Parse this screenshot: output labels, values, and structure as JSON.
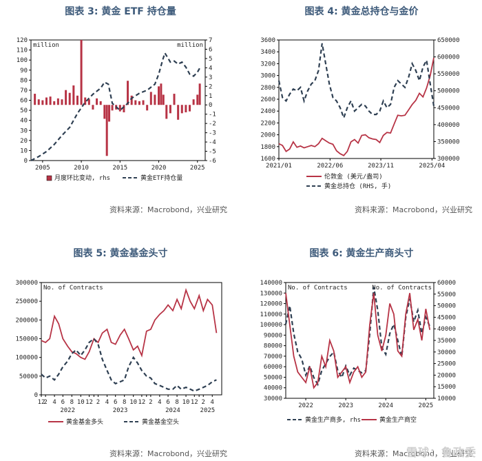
{
  "titles": {
    "c3": "图表 3:  黄金 ETF 持仓量",
    "c4": "图表 4:  黄金总持仓与金价",
    "c5": "图表 5:  黄金基金头寸",
    "c6": "图表 6:  黄金生产商头寸"
  },
  "source_text": "资料来源：Macrobond，兴业研究",
  "watermark": "雪球：鲁政委",
  "colors": {
    "red": "#b73345",
    "dark": "#2e3f52",
    "title": "#3d5a7a"
  },
  "chart_data": [
    {
      "id": "c3",
      "type": "bar",
      "left_unit": "million",
      "right_unit": "million",
      "y_left": {
        "min": 0,
        "max": 120,
        "ticks": [
          0,
          10,
          20,
          30,
          40,
          50,
          60,
          70,
          80,
          90,
          100,
          110,
          120
        ]
      },
      "y_right": {
        "min": -6,
        "max": 7,
        "ticks": [
          -6,
          -5,
          -4,
          -3,
          -2,
          -1,
          0,
          1,
          2,
          3,
          4,
          5,
          6,
          7
        ]
      },
      "x": {
        "min": 2003.5,
        "max": 2026,
        "ticks": [
          2005,
          2010,
          2015,
          2020,
          2025
        ]
      },
      "series": [
        {
          "name": "月度环比变动, rhs",
          "kind": "bar",
          "axis": "right",
          "x": [
            2004.0,
            2004.5,
            2005.0,
            2005.5,
            2006.0,
            2006.5,
            2007.0,
            2007.5,
            2008.0,
            2008.5,
            2009.0,
            2009.5,
            2010.0,
            2010.5,
            2011.0,
            2011.5,
            2012.0,
            2012.5,
            2013.0,
            2013.3,
            2013.6,
            2014.0,
            2014.5,
            2015.0,
            2015.5,
            2016.0,
            2016.5,
            2017.0,
            2017.5,
            2018.0,
            2018.5,
            2019.0,
            2019.5,
            2020.0,
            2020.3,
            2020.6,
            2021.0,
            2021.5,
            2022.0,
            2022.5,
            2023.0,
            2023.5,
            2024.0,
            2024.5,
            2025.0,
            2025.3
          ],
          "values": [
            1.2,
            0.6,
            0.5,
            0.8,
            0.9,
            0.4,
            0.7,
            0.6,
            1.6,
            1.3,
            2.1,
            1.0,
            7.0,
            0.8,
            0.6,
            -0.5,
            0.7,
            0.4,
            -1.5,
            -5.5,
            -1.8,
            -0.6,
            -0.5,
            -0.7,
            -0.8,
            2.6,
            1.0,
            0.5,
            0.4,
            0.5,
            -0.6,
            1.4,
            1.1,
            2.0,
            2.3,
            1.1,
            -1.5,
            -0.9,
            1.2,
            -1.6,
            -0.9,
            -0.8,
            -0.7,
            0.6,
            1.1,
            2.3
          ]
        },
        {
          "name": "黄金ETF持仓量",
          "kind": "line",
          "axis": "left",
          "x": [
            2003.5,
            2004.5,
            2005.5,
            2006.5,
            2007.5,
            2008.5,
            2009.5,
            2010.5,
            2011.5,
            2012.5,
            2013.0,
            2013.5,
            2014.0,
            2015.0,
            2016.0,
            2016.5,
            2017.5,
            2018.5,
            2019.5,
            2020.0,
            2020.5,
            2020.8,
            2021.5,
            2022.0,
            2022.5,
            2023.0,
            2023.5,
            2024.0,
            2024.5,
            2025.0,
            2025.3
          ],
          "values": [
            0,
            4,
            9,
            16,
            25,
            33,
            47,
            58,
            66,
            72,
            78,
            76,
            57,
            50,
            57,
            62,
            67,
            70,
            76,
            86,
            100,
            107,
            98,
            99,
            96,
            98,
            93,
            86,
            84,
            88,
            92
          ]
        }
      ]
    },
    {
      "id": "c4",
      "type": "line",
      "y_left": {
        "min": 1600,
        "max": 3600,
        "ticks": [
          1600,
          1800,
          2000,
          2200,
          2400,
          2600,
          2800,
          3000,
          3200,
          3400,
          3600
        ]
      },
      "y_right": {
        "min": 300000,
        "max": 650000,
        "ticks": [
          300000,
          350000,
          400000,
          450000,
          500000,
          550000,
          600000,
          650000
        ]
      },
      "x": {
        "min": 2021.0,
        "max": 2025.3,
        "ticks": [
          2021.0,
          2022.42,
          2023.83,
          2025.25
        ],
        "tick_labels": [
          "2021/01",
          "2022/06",
          "2023/11",
          "2025/04"
        ]
      },
      "series": [
        {
          "name": "伦敦金 (美元/盎司)",
          "axis": "left",
          "x": [
            2021.0,
            2021.1,
            2021.2,
            2021.3,
            2021.4,
            2021.5,
            2021.6,
            2021.7,
            2021.8,
            2021.9,
            2022.0,
            2022.1,
            2022.2,
            2022.3,
            2022.4,
            2022.5,
            2022.6,
            2022.7,
            2022.8,
            2022.9,
            2023.0,
            2023.1,
            2023.2,
            2023.3,
            2023.4,
            2023.5,
            2023.6,
            2023.7,
            2023.8,
            2023.9,
            2024.0,
            2024.1,
            2024.2,
            2024.3,
            2024.4,
            2024.5,
            2024.6,
            2024.7,
            2024.8,
            2024.9,
            2025.0,
            2025.1,
            2025.2,
            2025.3
          ],
          "values": [
            1850,
            1820,
            1720,
            1760,
            1880,
            1790,
            1810,
            1780,
            1800,
            1820,
            1800,
            1850,
            1940,
            1900,
            1860,
            1840,
            1730,
            1680,
            1650,
            1720,
            1880,
            1920,
            1860,
            1990,
            2000,
            1950,
            1930,
            1920,
            1870,
            1990,
            2040,
            2030,
            2180,
            2330,
            2320,
            2330,
            2420,
            2510,
            2580,
            2700,
            2640,
            2790,
            3000,
            3300
          ]
        },
        {
          "name": "黄金总持仓 (RHS, 手)",
          "axis": "right",
          "x": [
            2021.0,
            2021.1,
            2021.2,
            2021.3,
            2021.4,
            2021.5,
            2021.6,
            2021.7,
            2021.8,
            2021.9,
            2022.0,
            2022.1,
            2022.2,
            2022.3,
            2022.4,
            2022.5,
            2022.6,
            2022.7,
            2022.8,
            2022.9,
            2023.0,
            2023.1,
            2023.2,
            2023.3,
            2023.4,
            2023.5,
            2023.6,
            2023.7,
            2023.8,
            2023.9,
            2024.0,
            2024.1,
            2024.2,
            2024.3,
            2024.4,
            2024.5,
            2024.6,
            2024.7,
            2024.8,
            2024.9,
            2025.0,
            2025.1,
            2025.2,
            2025.3
          ],
          "values": [
            530000,
            480000,
            470000,
            490000,
            505000,
            500000,
            510000,
            470000,
            500000,
            520000,
            530000,
            560000,
            640000,
            580000,
            520000,
            480000,
            470000,
            450000,
            420000,
            450000,
            470000,
            440000,
            450000,
            460000,
            455000,
            440000,
            430000,
            430000,
            440000,
            470000,
            450000,
            460000,
            510000,
            530000,
            520000,
            510000,
            540000,
            580000,
            560000,
            530000,
            570000,
            590000,
            520000,
            455000
          ]
        }
      ]
    },
    {
      "id": "c5",
      "type": "line",
      "left_unit": "No. of Contracts",
      "y_left": {
        "min": 0,
        "max": 300000,
        "ticks": [
          0,
          50000,
          100000,
          150000,
          200000,
          250000,
          300000
        ]
      },
      "x": {
        "min": 2021.92,
        "max": 2025.35,
        "ticks": [
          2021.92,
          2022.0,
          2022.17,
          2022.33,
          2022.5,
          2022.67,
          2022.83,
          2022.92,
          2023.0,
          2023.17,
          2023.33,
          2023.5,
          2023.67,
          2023.83,
          2023.92,
          2024.0,
          2024.17,
          2024.33,
          2024.5,
          2024.67,
          2024.83,
          2024.92,
          2025.0,
          2025.17
        ],
        "tick_labels": [
          "12",
          "2",
          "4",
          "6",
          "8",
          "10",
          "12",
          "",
          "2",
          "4",
          "6",
          "8",
          "10",
          "12",
          "",
          "2",
          "4",
          "6",
          "8",
          "10",
          "12",
          "",
          "2",
          "4"
        ],
        "year_labels": [
          "2022",
          "2023",
          "2024",
          "2025"
        ],
        "year_positions": [
          2022.42,
          2023.42,
          2024.42,
          2025.08
        ]
      },
      "series": [
        {
          "name": "黄金基金多头",
          "axis": "left",
          "x": [
            2021.92,
            2022.0,
            2022.08,
            2022.17,
            2022.25,
            2022.33,
            2022.42,
            2022.5,
            2022.58,
            2022.67,
            2022.75,
            2022.83,
            2022.92,
            2023.0,
            2023.08,
            2023.17,
            2023.25,
            2023.33,
            2023.42,
            2023.5,
            2023.58,
            2023.67,
            2023.75,
            2023.83,
            2023.92,
            2024.0,
            2024.08,
            2024.17,
            2024.25,
            2024.33,
            2024.42,
            2024.5,
            2024.58,
            2024.67,
            2024.75,
            2024.83,
            2024.92,
            2025.0,
            2025.08,
            2025.17,
            2025.25
          ],
          "values": [
            145000,
            140000,
            150000,
            210000,
            190000,
            150000,
            130000,
            115000,
            110000,
            100000,
            95000,
            115000,
            150000,
            140000,
            165000,
            175000,
            140000,
            135000,
            160000,
            175000,
            150000,
            120000,
            130000,
            105000,
            170000,
            175000,
            200000,
            215000,
            225000,
            240000,
            225000,
            255000,
            230000,
            280000,
            250000,
            230000,
            265000,
            225000,
            255000,
            240000,
            165000
          ]
        },
        {
          "name": "黄金基金空头",
          "axis": "left",
          "x": [
            2021.92,
            2022.0,
            2022.08,
            2022.17,
            2022.25,
            2022.33,
            2022.42,
            2022.5,
            2022.58,
            2022.67,
            2022.75,
            2022.83,
            2022.92,
            2023.0,
            2023.08,
            2023.17,
            2023.25,
            2023.33,
            2023.42,
            2023.5,
            2023.58,
            2023.67,
            2023.75,
            2023.83,
            2023.92,
            2024.0,
            2024.08,
            2024.17,
            2024.25,
            2024.33,
            2024.42,
            2024.5,
            2024.58,
            2024.67,
            2024.75,
            2024.83,
            2024.92,
            2025.0,
            2025.08,
            2025.17,
            2025.25
          ],
          "values": [
            55000,
            45000,
            50000,
            40000,
            55000,
            75000,
            90000,
            110000,
            120000,
            105000,
            120000,
            140000,
            150000,
            135000,
            95000,
            65000,
            40000,
            30000,
            35000,
            40000,
            75000,
            100000,
            85000,
            65000,
            50000,
            45000,
            30000,
            25000,
            20000,
            15000,
            15000,
            25000,
            15000,
            20000,
            15000,
            10000,
            15000,
            20000,
            25000,
            35000,
            40000
          ]
        }
      ]
    },
    {
      "id": "c6",
      "type": "line",
      "left_unit": "No. of Contracts",
      "right_unit": "No. of Contracts",
      "y_left": {
        "min": 30000,
        "max": 140000,
        "ticks": [
          30000,
          40000,
          50000,
          60000,
          70000,
          80000,
          90000,
          100000,
          110000,
          120000,
          130000,
          140000
        ]
      },
      "y_right": {
        "min": 10000,
        "max": 60000,
        "ticks": [
          10000,
          15000,
          20000,
          25000,
          30000,
          35000,
          40000,
          45000,
          50000,
          55000,
          60000
        ]
      },
      "x": {
        "min": 2021.7,
        "max": 2025.4,
        "ticks": [
          2022.2,
          2023.2,
          2024.2,
          2025.2
        ],
        "tick_labels": [
          "2022",
          "2023",
          "2024",
          "2025"
        ]
      },
      "series": [
        {
          "name": "黄金生产商多, rhs",
          "axis": "right",
          "x": [
            2021.7,
            2021.8,
            2021.9,
            2022.0,
            2022.1,
            2022.2,
            2022.3,
            2022.4,
            2022.5,
            2022.6,
            2022.7,
            2022.8,
            2022.9,
            2023.0,
            2023.1,
            2023.2,
            2023.3,
            2023.4,
            2023.5,
            2023.6,
            2023.7,
            2023.8,
            2023.9,
            2024.0,
            2024.1,
            2024.2,
            2024.3,
            2024.4,
            2024.5,
            2024.6,
            2024.7,
            2024.8,
            2024.9,
            2025.0,
            2025.1,
            2025.2,
            2025.3
          ],
          "values": [
            42000,
            50000,
            38000,
            30000,
            27000,
            20000,
            24000,
            19000,
            16000,
            22000,
            25000,
            28000,
            30000,
            22000,
            19000,
            24000,
            20000,
            23000,
            22000,
            21000,
            22000,
            38000,
            58000,
            48000,
            32000,
            29000,
            38000,
            42000,
            35000,
            28000,
            45000,
            53000,
            43000,
            48000,
            38000,
            45000,
            41000
          ]
        },
        {
          "name": "黄金生产商空",
          "axis": "left",
          "x": [
            2021.7,
            2021.8,
            2021.9,
            2022.0,
            2022.1,
            2022.2,
            2022.3,
            2022.4,
            2022.5,
            2022.6,
            2022.7,
            2022.8,
            2022.9,
            2023.0,
            2023.1,
            2023.2,
            2023.3,
            2023.4,
            2023.5,
            2023.6,
            2023.7,
            2023.8,
            2023.9,
            2024.0,
            2024.1,
            2024.2,
            2024.3,
            2024.4,
            2024.5,
            2024.6,
            2024.7,
            2024.8,
            2024.9,
            2025.0,
            2025.1,
            2025.2,
            2025.3
          ],
          "values": [
            130000,
            100000,
            70000,
            55000,
            50000,
            45000,
            60000,
            40000,
            45000,
            70000,
            60000,
            85000,
            75000,
            50000,
            55000,
            60000,
            45000,
            55000,
            60000,
            50000,
            55000,
            100000,
            130000,
            90000,
            75000,
            90000,
            120000,
            110000,
            75000,
            70000,
            110000,
            130000,
            95000,
            105000,
            85000,
            115000,
            95000
          ]
        }
      ]
    }
  ],
  "legends": {
    "c3": [
      "月度环比变动, rhs",
      "黄金ETF持仓量"
    ],
    "c4": [
      "伦敦金 (美元/盎司)",
      "黄金总持仓 (RHS, 手)"
    ],
    "c5": [
      "黄金基金多头",
      "黄金基金空头"
    ],
    "c6": [
      "黄金生产商多, rhs",
      "黄金生产商空"
    ]
  },
  "units": {
    "c3_left": "million",
    "c3_right": "million",
    "c5_left": "No. of Contracts",
    "c6_left": "No. of Contracts",
    "c6_right": "No. of Contracts"
  }
}
